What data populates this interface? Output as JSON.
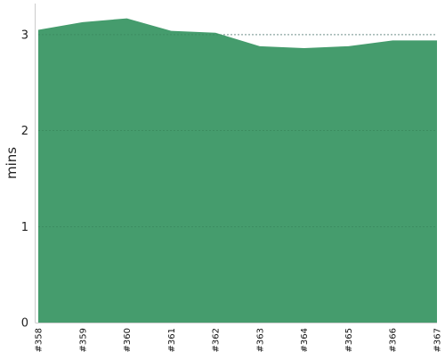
{
  "chart_data": {
    "type": "area",
    "categories": [
      "#358",
      "#359",
      "#360",
      "#361",
      "#362",
      "#363",
      "#364",
      "#365",
      "#366",
      "#367"
    ],
    "series": [
      {
        "values": [
          3.05,
          3.13,
          3.17,
          3.04,
          3.02,
          2.88,
          2.86,
          2.88,
          2.94,
          2.94
        ]
      }
    ],
    "ylabel": "mins",
    "ylim": [
      0,
      3.3
    ],
    "yticks": [
      0,
      1,
      2,
      3
    ],
    "grid": "horizontal-dashed",
    "fill_color": "#459c6d",
    "grid_color": "#6b7f8f",
    "axis_color": "#cccccc"
  }
}
